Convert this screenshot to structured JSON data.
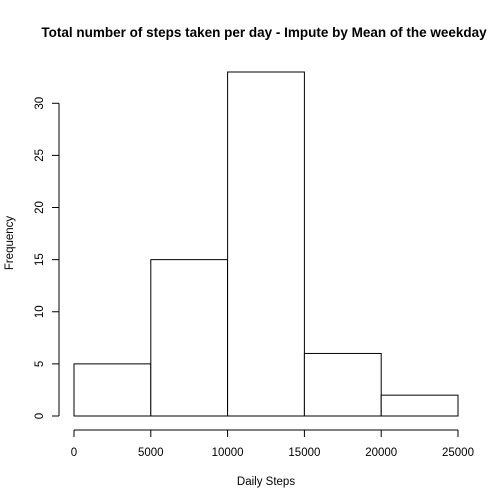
{
  "chart_data": {
    "type": "bar",
    "title": "Total number of steps taken per day - Impute by Mean of the weekday",
    "xlabel": "Daily Steps",
    "ylabel": "Frequency",
    "bins": [
      {
        "from": 0,
        "to": 5000,
        "count": 5
      },
      {
        "from": 5000,
        "to": 10000,
        "count": 15
      },
      {
        "from": 10000,
        "to": 15000,
        "count": 33
      },
      {
        "from": 15000,
        "to": 20000,
        "count": 6
      },
      {
        "from": 20000,
        "to": 25000,
        "count": 2
      }
    ],
    "xlim": [
      0,
      25000
    ],
    "ylim": [
      0,
      33
    ],
    "xticks": [
      0,
      5000,
      10000,
      15000,
      20000,
      25000
    ],
    "yticks": [
      0,
      5,
      10,
      15,
      20,
      25,
      30
    ],
    "grid": false,
    "bar_fill": "#ffffff",
    "bar_stroke": "#000000"
  }
}
